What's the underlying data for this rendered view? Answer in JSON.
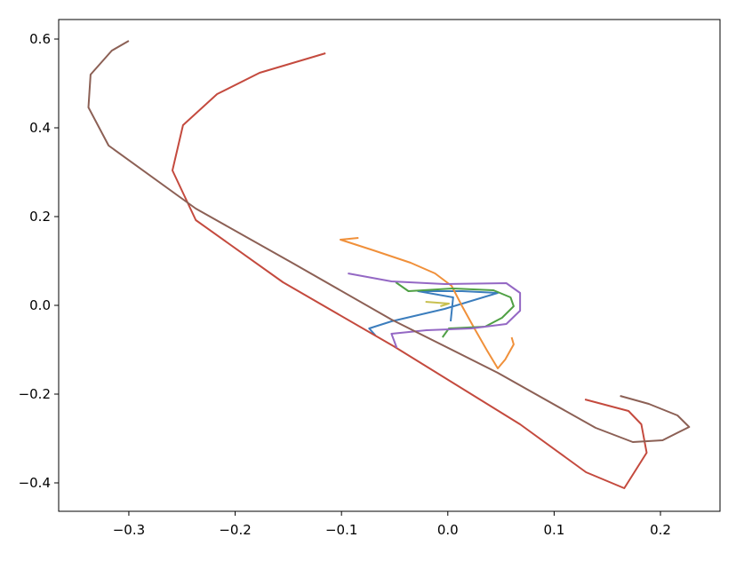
{
  "chart_data": {
    "type": "line",
    "xlim": [
      -0.366,
      0.256
    ],
    "ylim": [
      -0.464,
      0.644
    ],
    "xticks": [
      {
        "value": -0.3,
        "label": "−0.3"
      },
      {
        "value": -0.2,
        "label": "−0.2"
      },
      {
        "value": -0.1,
        "label": "−0.1"
      },
      {
        "value": 0,
        "label": "0.0"
      },
      0.1,
      0.2
    ],
    "yticks": [
      {
        "value": -0.4,
        "label": "−0.4"
      },
      {
        "value": -0.2,
        "label": "−0.2"
      },
      {
        "value": 0,
        "label": "0.0"
      },
      0.2,
      0.4,
      0.6
    ],
    "series": [
      {
        "color": "#3b7dbd",
        "x": [
          0.0027,
          0.005,
          -0.028,
          0.0135,
          0.047,
          -0.003,
          -0.053,
          -0.074,
          -0.068
        ],
        "values": [
          -0.036,
          0.018,
          0.032,
          0.032,
          0.028,
          -0.008,
          -0.036,
          -0.052,
          -0.068
        ]
      },
      {
        "color": "#f0903a",
        "x": [
          -0.084,
          -0.101,
          -0.07,
          -0.035,
          -0.012,
          0.0035,
          0.0135,
          0.025,
          0.037,
          0.047,
          0.054,
          0.062,
          0.06
        ],
        "values": [
          0.152,
          0.148,
          0.124,
          0.096,
          0.072,
          0.044,
          -0.002,
          -0.052,
          -0.102,
          -0.142,
          -0.122,
          -0.088,
          -0.072
        ]
      },
      {
        "color": "#4fa044",
        "x": [
          -0.049,
          -0.037,
          0.005,
          0.043,
          0.059,
          0.062,
          0.051,
          0.035,
          0.001,
          -0.005
        ],
        "values": [
          0.052,
          0.032,
          0.038,
          0.034,
          0.018,
          -0.002,
          -0.028,
          -0.048,
          -0.052,
          -0.072
        ]
      },
      {
        "color": "#c44a3e",
        "x": [
          -0.115,
          -0.177,
          -0.217,
          -0.249,
          -0.259,
          -0.237,
          -0.155,
          -0.051,
          0.068,
          0.13,
          0.166,
          0.187,
          0.182,
          0.17,
          0.129
        ],
        "values": [
          0.568,
          0.524,
          0.476,
          0.406,
          0.304,
          0.192,
          0.052,
          -0.092,
          -0.268,
          -0.376,
          -0.412,
          -0.332,
          -0.268,
          -0.238,
          -0.212
        ]
      },
      {
        "color": "#9468c4",
        "x": [
          -0.094,
          -0.053,
          -0.003,
          0.055,
          0.068,
          0.068,
          0.055,
          0.022,
          -0.02,
          -0.053,
          -0.048
        ],
        "values": [
          0.072,
          0.054,
          0.048,
          0.05,
          0.028,
          -0.012,
          -0.042,
          -0.052,
          -0.056,
          -0.064,
          -0.096
        ]
      },
      {
        "color": "#8c6055",
        "x": [
          -0.3,
          -0.316,
          -0.336,
          -0.338,
          -0.319,
          -0.237,
          -0.145,
          -0.053,
          0.047,
          0.139,
          0.174,
          0.202,
          0.227,
          0.216,
          0.189,
          0.162
        ],
        "values": [
          0.596,
          0.574,
          0.52,
          0.446,
          0.36,
          0.218,
          0.094,
          -0.032,
          -0.152,
          -0.276,
          -0.308,
          -0.304,
          -0.274,
          -0.248,
          -0.222,
          -0.204
        ]
      },
      {
        "color": "#c8c050",
        "x": [
          -0.021,
          0.001,
          -0.007
        ],
        "values": [
          0.008,
          0.004,
          -0.002
        ]
      }
    ]
  }
}
